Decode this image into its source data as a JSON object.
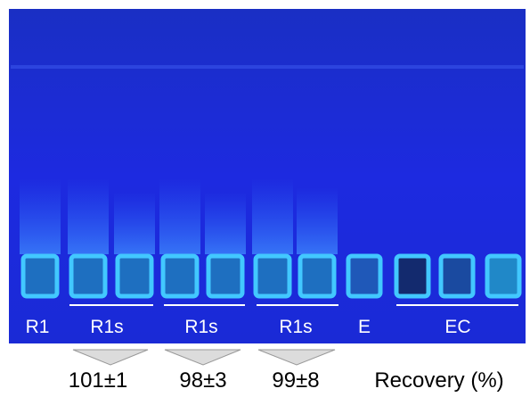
{
  "lane_labels": [
    "R1",
    "R1s",
    "R1s",
    "R1s",
    "E",
    "EC"
  ],
  "recovery": {
    "values": [
      "101±1",
      "98±3",
      "99±8"
    ],
    "label": "Recovery (%)"
  }
}
